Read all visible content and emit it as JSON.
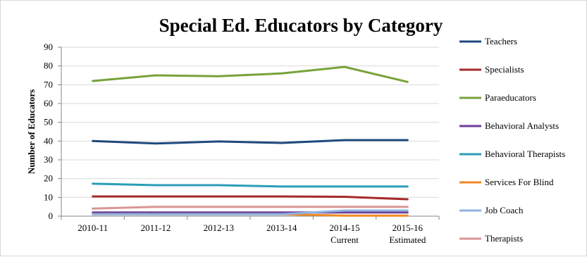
{
  "chart_data": {
    "type": "line",
    "title": "Special Ed. Educators by Category",
    "xlabel": "",
    "ylabel": "Number of Educators",
    "categories": [
      [
        "2010-11"
      ],
      [
        "2011-12"
      ],
      [
        "2012-13"
      ],
      [
        "2013-14"
      ],
      [
        "2014-15",
        "Current"
      ],
      [
        "2015-16",
        "Estimated"
      ]
    ],
    "ylim": [
      0,
      90
    ],
    "yticks": [
      0,
      10,
      20,
      30,
      40,
      50,
      60,
      70,
      80,
      90
    ],
    "grid": true,
    "legend_position": "right",
    "series": [
      {
        "name": "Teachers",
        "color": "#1f497d",
        "values": [
          40,
          38.7,
          39.8,
          39,
          40.5,
          40.5
        ]
      },
      {
        "name": "Specialists",
        "color": "#a52a2a",
        "values": [
          10.5,
          10.5,
          10.5,
          10.5,
          10.3,
          9
        ]
      },
      {
        "name": "Paraeducators",
        "color": "#77a33a",
        "values": [
          72,
          75,
          74.5,
          76,
          79.5,
          71.5
        ]
      },
      {
        "name": "Behavioral Analysts",
        "color": "#6c3f99",
        "values": [
          2,
          2,
          2,
          2,
          2,
          2
        ]
      },
      {
        "name": "Behavioral Therapists",
        "color": "#2a9db8",
        "values": [
          17.3,
          16.5,
          16.5,
          15.8,
          15.8,
          15.8
        ]
      },
      {
        "name": "Services For Blind",
        "color": "#f08a24",
        "values": [
          1,
          1,
          1,
          1,
          0.3,
          0.3
        ]
      },
      {
        "name": "Job Coach",
        "color": "#8eb4e3",
        "values": [
          1,
          1,
          1,
          1,
          3,
          3
        ]
      },
      {
        "name": "Therapists",
        "color": "#d99694",
        "values": [
          4,
          5,
          5,
          5,
          5,
          5
        ]
      }
    ]
  }
}
